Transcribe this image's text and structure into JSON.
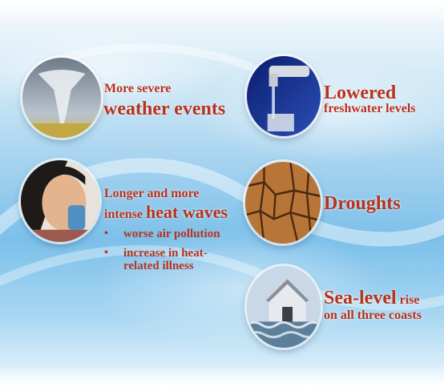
{
  "items": [
    {
      "line1": "More severe",
      "line2": "weather events"
    },
    {
      "big": "Lowered",
      "small": "freshwater levels"
    },
    {
      "line1a": "Longer and more",
      "line2a": "intense ",
      "line2b": "heat waves",
      "bullets": [
        {
          "marker": "•",
          "text": "worse air pollution"
        },
        {
          "marker": "•",
          "text": "increase in heat-related illness"
        }
      ]
    },
    {
      "big": "Droughts"
    },
    {
      "big": "Sea-level",
      "small1": " rise",
      "small2": "on all three coasts"
    }
  ],
  "colors": {
    "text": "#b8321c",
    "sky": "#7cc0ea"
  },
  "icons": [
    "tornado-photo",
    "faucet-photo",
    "inhaler-girl-photo",
    "cracked-earth-photo",
    "flooded-house-photo"
  ]
}
